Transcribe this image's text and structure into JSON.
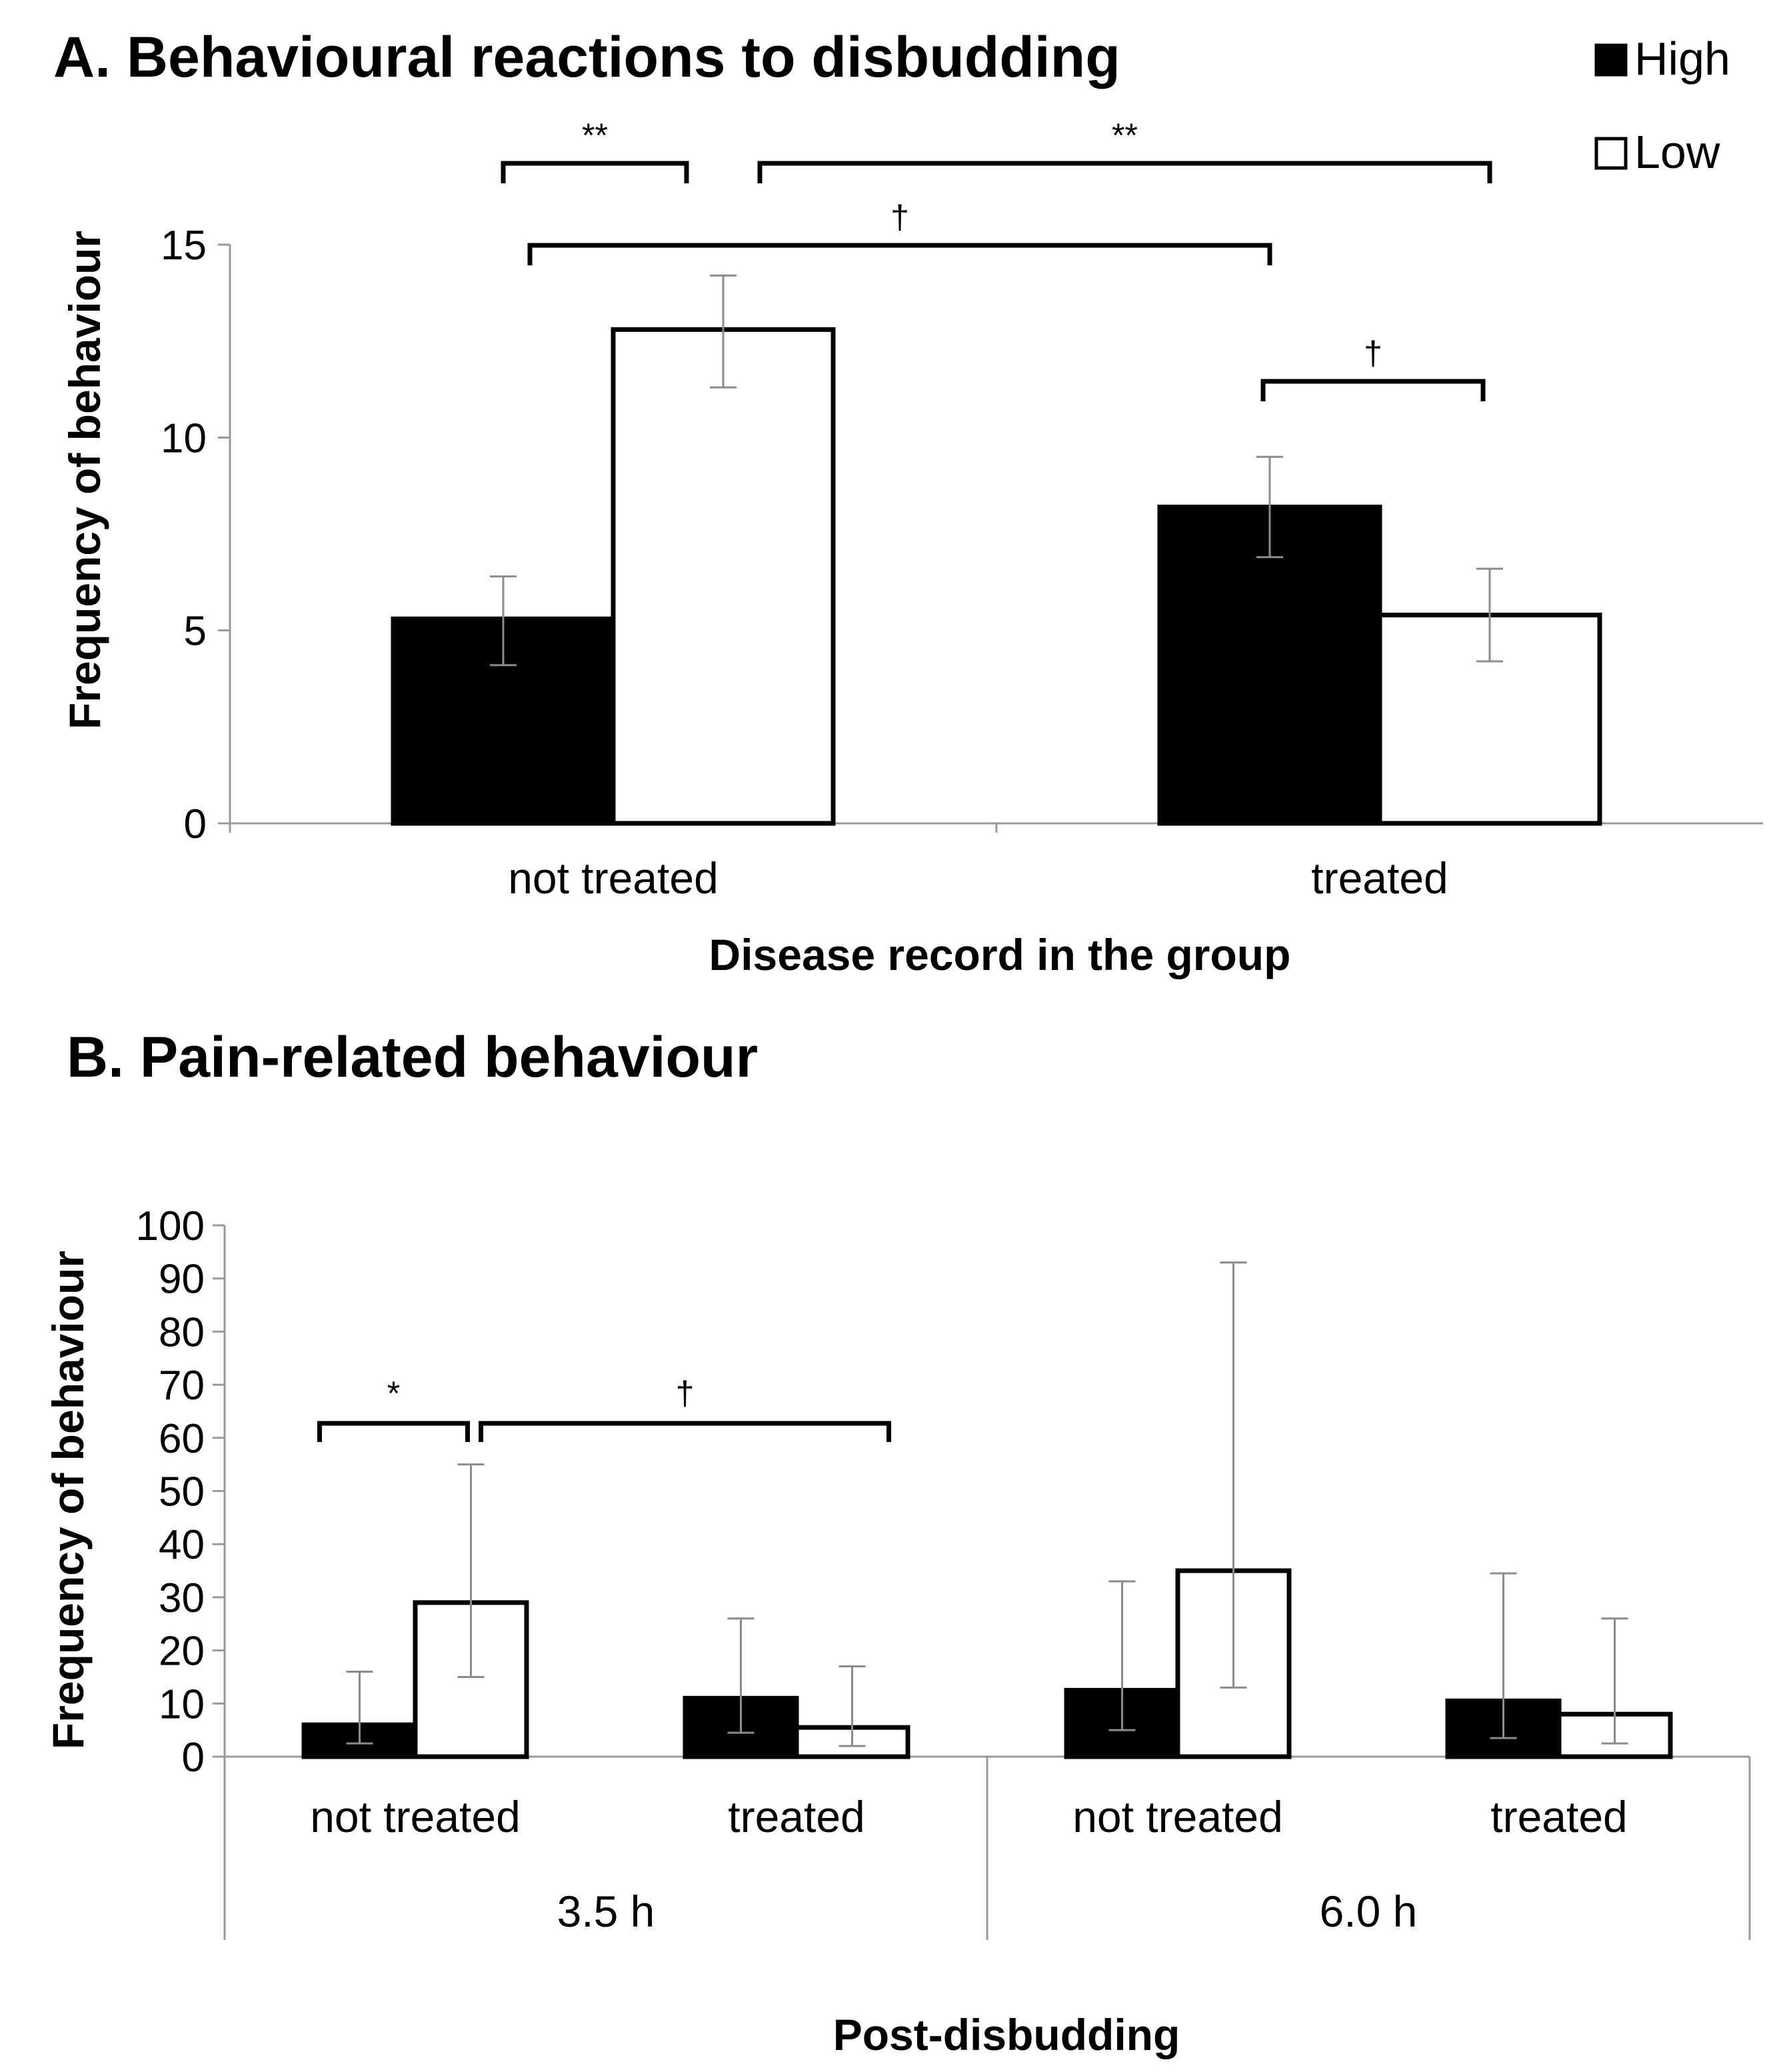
{
  "chart_data": [
    {
      "type": "bar",
      "title": "A. Behavioural reactions to disbudding",
      "xlabel": "Disease record in the group",
      "ylabel": "Frequency of behaviour",
      "ylim": [
        0,
        15
      ],
      "yticks": [
        "0",
        "5",
        "10",
        "15"
      ],
      "categories": [
        "not treated",
        "treated"
      ],
      "series": [
        {
          "name": "High",
          "color": "#000000",
          "values": [
            5.3,
            8.2
          ],
          "err_low": [
            4.1,
            6.9
          ],
          "err_high": [
            6.4,
            9.5
          ]
        },
        {
          "name": "Low",
          "color": "#ffffff",
          "values": [
            12.8,
            5.4
          ],
          "err_low": [
            11.3,
            4.2
          ],
          "err_high": [
            14.2,
            6.6
          ]
        }
      ],
      "significance": [
        {
          "label": "**",
          "from": "not treated/High",
          "to": "not treated/Low"
        },
        {
          "label": "**",
          "from": "not treated/Low",
          "to": "treated/Low"
        },
        {
          "label": "†",
          "from": "not treated/High",
          "to": "treated/High"
        },
        {
          "label": "†",
          "from": "treated/High",
          "to": "treated/Low"
        }
      ]
    },
    {
      "type": "bar",
      "title": "B. Pain-related behaviour",
      "xlabel": "Post-disbudding",
      "ylabel": "Frequency of behaviour",
      "ylim": [
        0,
        100
      ],
      "yticks": [
        "0",
        "10",
        "20",
        "30",
        "40",
        "50",
        "60",
        "70",
        "80",
        "90",
        "100"
      ],
      "groups": [
        "3.5 h",
        "6.0 h"
      ],
      "categories": [
        "not treated",
        "treated",
        "not treated",
        "treated"
      ],
      "series": [
        {
          "name": "High",
          "color": "#000000",
          "values": [
            6,
            11,
            12.5,
            10.5
          ],
          "err_low": [
            2.5,
            4.5,
            5,
            3.5
          ],
          "err_high": [
            16,
            26,
            33,
            34.5
          ]
        },
        {
          "name": "Low",
          "color": "#ffffff",
          "values": [
            29,
            5.5,
            35,
            8
          ],
          "err_low": [
            15,
            2,
            13,
            2.5
          ],
          "err_high": [
            55,
            17,
            93,
            26
          ]
        }
      ],
      "significance": [
        {
          "label": "*",
          "from": "3.5 h not treated/High",
          "to": "3.5 h not treated/Low"
        },
        {
          "label": "†",
          "from": "3.5 h not treated/Low",
          "to": "3.5 h treated/Low"
        }
      ]
    }
  ],
  "legend": {
    "items": [
      {
        "label": "High",
        "color": "#000000"
      },
      {
        "label": "Low",
        "color": "#ffffff"
      }
    ]
  }
}
